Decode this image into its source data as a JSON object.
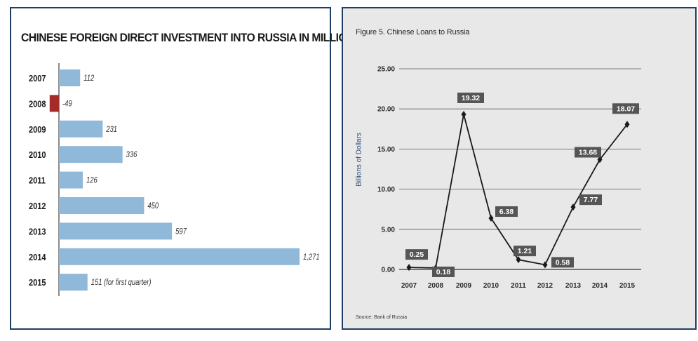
{
  "chart_data": [
    {
      "type": "bar",
      "orientation": "horizontal",
      "title": "CHINESE FOREIGN DIRECT INVESTMENT INTO RUSSIA IN MILLION USD",
      "categories": [
        "2007",
        "2008",
        "2009",
        "2010",
        "2011",
        "2012",
        "2013",
        "2014",
        "2015"
      ],
      "values": [
        112,
        -49,
        231,
        336,
        126,
        450,
        597,
        1271,
        151
      ],
      "data_labels": [
        "112",
        "-49",
        "231",
        "336",
        "126",
        "450",
        "597",
        "1,271",
        "151 (for first quarter)"
      ],
      "colors": {
        "positive": "#8fb8d9",
        "negative": "#a52a2a"
      }
    },
    {
      "type": "line",
      "title": "Figure 5. Chinese Loans to Russia",
      "ylabel": "Billions of Dollars",
      "x": [
        "2007",
        "2008",
        "2009",
        "2010",
        "2011",
        "2012",
        "2013",
        "2014",
        "2015"
      ],
      "values": [
        0.25,
        0.18,
        19.32,
        6.38,
        1.21,
        0.58,
        7.77,
        13.68,
        18.07
      ],
      "data_labels": [
        "0.25",
        "0.18",
        "19.32",
        "6.38",
        "1.21",
        "0.58",
        "7.77",
        "13.68",
        "18.07"
      ],
      "ylim": [
        0,
        25
      ],
      "yticks": [
        "0.00",
        "5.00",
        "10.00",
        "15.00",
        "20.00",
        "25.00"
      ],
      "grid": true,
      "source": "Source: Bank of Russia"
    }
  ]
}
